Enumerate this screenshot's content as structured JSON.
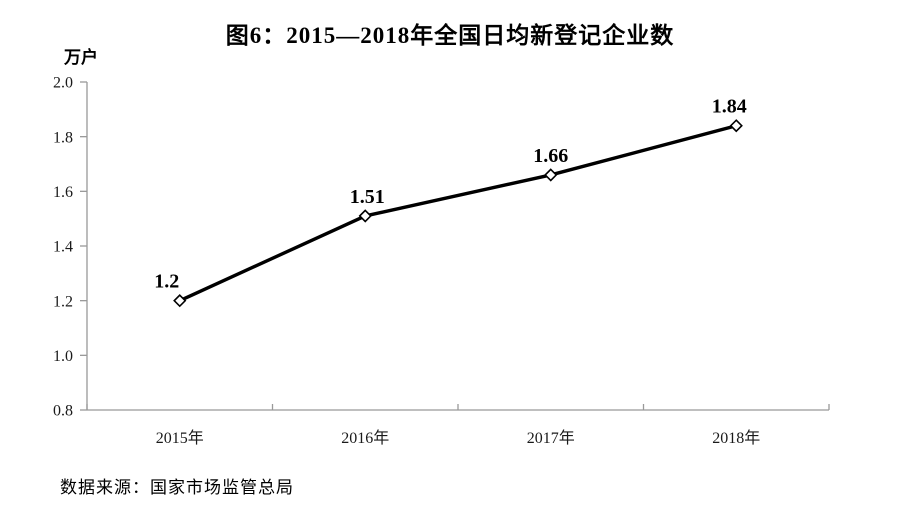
{
  "title": "图6：2015—2018年全国日均新登记企业数",
  "unit_label": "万户",
  "source": "数据来源：国家市场监管总局",
  "colors": {
    "background": "#ffffff",
    "axis": "#999999",
    "series_line": "#000000",
    "marker_fill": "#ffffff",
    "marker_stroke": "#000000",
    "text": "#000000",
    "tick_text": "#1a1a1a"
  },
  "chart_data": {
    "type": "line",
    "title": "图6：2015—2018年全国日均新登记企业数",
    "xlabel": "",
    "ylabel": "万户",
    "categories": [
      "2015年",
      "2016年",
      "2017年",
      "2018年"
    ],
    "values": [
      1.2,
      1.51,
      1.66,
      1.84
    ],
    "point_labels": [
      "1.2",
      "1.51",
      "1.66",
      "1.84"
    ],
    "ylim": [
      0.8,
      2.0
    ],
    "ytick_step": 0.2,
    "ytick_labels": [
      "2.0",
      "1.8",
      "1.6",
      "1.4",
      "1.2",
      "1.0",
      "0.8"
    ],
    "grid": false,
    "legend_position": "none",
    "marker": "diamond",
    "x_tick_style": "between-categories"
  }
}
